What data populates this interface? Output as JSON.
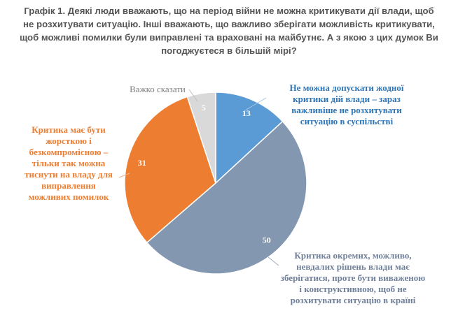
{
  "chart_data": {
    "type": "pie",
    "title_lines": [
      "Графік 1. Деякі люди вважають, що на період війни не можна критикувати дії влади, щоб",
      "не розхитувати ситуацію. Інші вважають, що важливо зберігати можливість критикувати,",
      "щоб можливі помилки були виправлені та враховані на майбутнє. А з якою з цих думок Ви",
      "погоджуєтеся в більшій мірі?"
    ],
    "slices": [
      {
        "label": "Не можна допускати жодної критики дій влади – зараз важливіше не розхитувати ситуацію в суспільстві",
        "value": 13,
        "color": "#5b9bd5",
        "text_color": "#2e75b6"
      },
      {
        "label": "Критика окремих, можливо, невдалих рішень влади має зберігатися, проте бути виваженою і конструктивною, щоб не розхитувати ситуацію в країні",
        "value": 50,
        "color": "#8497b0",
        "text_color": "#71809a"
      },
      {
        "label": "Критика має бути жорсткою і безкомпромісною – тільки так можна тиснути на владу для виправлення можливих помилок",
        "value": 31,
        "color": "#ed7d31",
        "text_color": "#ed7d31"
      },
      {
        "label": "Важко сказати",
        "value": 5,
        "color": "#d9d9d9",
        "text_color": "#808080"
      }
    ]
  }
}
